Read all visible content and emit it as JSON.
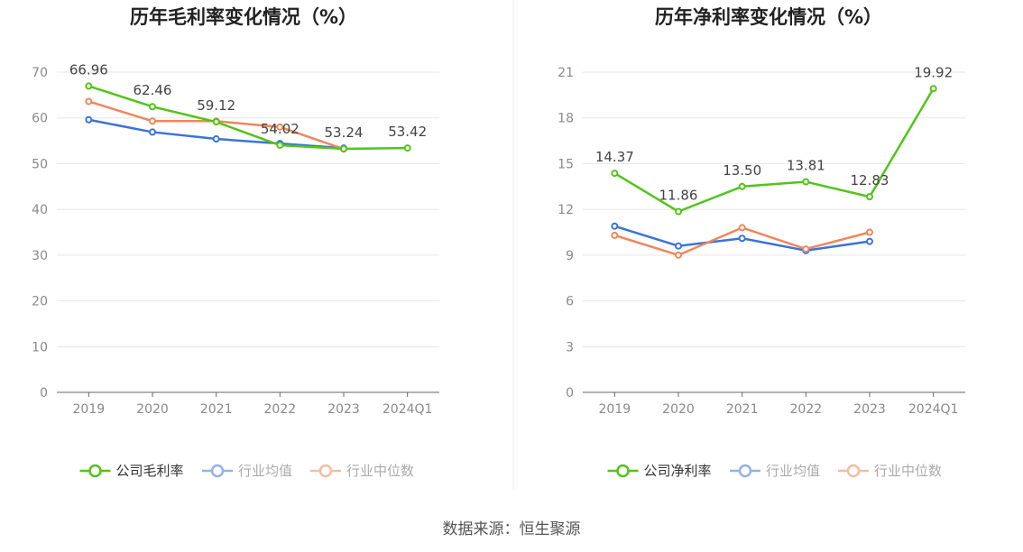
{
  "colors": {
    "company": "#52c41a",
    "industry_avg": "#3b73d9",
    "industry_median": "#f0875a",
    "grid": "#e6e6e6",
    "axis": "#666666",
    "tick_text": "#8a8a8a",
    "label_text": "#444444",
    "title_text": "#222222",
    "divider": "#eeeeee"
  },
  "footer": {
    "source": "数据来源：恒生聚源"
  },
  "chart_data": [
    {
      "type": "line",
      "title": "历年毛利率变化情况（%）",
      "categories": [
        "2019",
        "2020",
        "2021",
        "2022",
        "2023",
        "2024Q1"
      ],
      "ylim": [
        0,
        70
      ],
      "yticks": [
        0,
        10,
        20,
        30,
        40,
        50,
        60,
        70
      ],
      "grid": true,
      "legend_position": "bottom-center",
      "series": [
        {
          "name": "公司毛利率",
          "role": "company",
          "values": [
            66.96,
            62.46,
            59.12,
            54.02,
            53.24,
            53.42
          ],
          "labels": [
            "66.96",
            "62.46",
            "59.12",
            "54.02",
            "53.24",
            "53.42"
          ]
        },
        {
          "name": "行业均值",
          "role": "industry_avg",
          "values": [
            59.6,
            56.9,
            55.4,
            54.4,
            53.4,
            null
          ]
        },
        {
          "name": "行业中位数",
          "role": "industry_median",
          "values": [
            63.6,
            59.3,
            59.3,
            58.0,
            53.2,
            null
          ]
        }
      ]
    },
    {
      "type": "line",
      "title": "历年净利率变化情况（%）",
      "categories": [
        "2019",
        "2020",
        "2021",
        "2022",
        "2023",
        "2024Q1"
      ],
      "ylim": [
        0,
        21
      ],
      "yticks": [
        0,
        3,
        6,
        9,
        12,
        15,
        18,
        21
      ],
      "grid": true,
      "legend_position": "bottom-center",
      "series": [
        {
          "name": "公司净利率",
          "role": "company",
          "values": [
            14.37,
            11.86,
            13.5,
            13.81,
            12.83,
            19.92
          ],
          "labels": [
            "14.37",
            "11.86",
            "13.50",
            "13.81",
            "12.83",
            "19.92"
          ]
        },
        {
          "name": "行业均值",
          "role": "industry_avg",
          "values": [
            10.9,
            9.6,
            10.1,
            9.3,
            9.9,
            null
          ]
        },
        {
          "name": "行业中位数",
          "role": "industry_median",
          "values": [
            10.3,
            9.0,
            10.8,
            9.4,
            10.5,
            null
          ]
        }
      ]
    }
  ]
}
